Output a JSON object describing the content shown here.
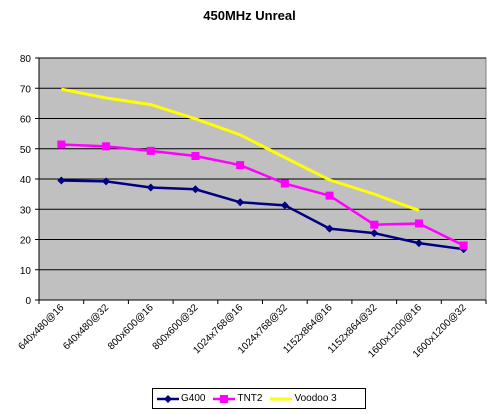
{
  "chart_data": {
    "type": "line",
    "title": "450MHz Unreal",
    "xlabel": "",
    "ylabel": "",
    "categories": [
      "640x480@16",
      "640x480@32",
      "800x600@16",
      "800x600@32",
      "1024x768@16",
      "1024x768@32",
      "1152x864@16",
      "1152x864@32",
      "1600x1200@16",
      "1600x1200@32"
    ],
    "ylim": [
      0,
      80
    ],
    "yticks": [
      0,
      10,
      20,
      30,
      40,
      50,
      60,
      70,
      80
    ],
    "grid": "horizontal",
    "legend_position": "bottom",
    "plot_background": "#c0c0c0",
    "series": [
      {
        "name": "G400",
        "color": "#000080",
        "marker": "diamond",
        "values": [
          39.5,
          39.2,
          37.2,
          36.6,
          32.3,
          31.3,
          23.6,
          22.1,
          18.8,
          16.8
        ]
      },
      {
        "name": "TNT2",
        "color": "#ff00ff",
        "marker": "square",
        "values": [
          51.4,
          50.8,
          49.3,
          47.6,
          44.6,
          38.5,
          34.5,
          24.9,
          25.3,
          18.0
        ]
      },
      {
        "name": "Voodoo 3",
        "color": "#ffff00",
        "marker": "none",
        "values": [
          69.7,
          66.8,
          64.6,
          59.9,
          54.6,
          47.1,
          39.7,
          35.0,
          29.6,
          null
        ]
      }
    ]
  }
}
